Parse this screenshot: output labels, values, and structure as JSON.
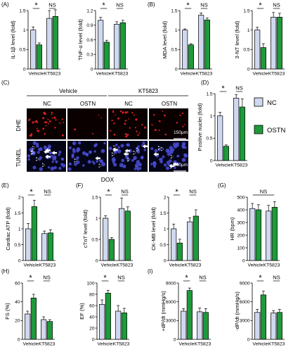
{
  "panel_letters": [
    "(A)",
    "(B)",
    "(C)",
    "(D)",
    "(E)",
    "(F)",
    "(G)",
    "(H)",
    "(I)"
  ],
  "legend": {
    "items": [
      {
        "label": "NC",
        "color": "#cfd8ee"
      },
      {
        "label": "OSTN",
        "color": "#1e9a3a"
      }
    ]
  },
  "micrograph": {
    "groups": [
      "Vehicle",
      "KT5823"
    ],
    "columns": [
      "NC",
      "OSTN",
      "NC",
      "OSTN"
    ],
    "rows": [
      "DHE",
      "TUNEL"
    ],
    "scale_bars": [
      "150μm",
      "100μm"
    ],
    "bottom_label": "DOX",
    "colors": {
      "dhe_bg": "#0a0000",
      "dhe_dot": "#e02020",
      "tunel_bg": "#050518",
      "tunel_cell": "#4a4fd8",
      "arrow": "#ffffff"
    }
  },
  "chart_data": [
    {
      "id": "il1b",
      "type": "bar",
      "ylabel": "IL-1β level (fold)",
      "ylim": [
        0,
        1.5
      ],
      "yticks": [
        0,
        0.5,
        1,
        1.5
      ],
      "categories": [
        "Vehicle",
        "KT5823"
      ],
      "series": [
        {
          "name": "NC",
          "values": [
            1.0,
            1.3
          ],
          "errors": [
            0.08,
            0.2
          ]
        },
        {
          "name": "OSTN",
          "values": [
            0.62,
            1.35
          ],
          "errors": [
            0.05,
            0.17
          ]
        }
      ],
      "significance": [
        "*",
        "NS"
      ]
    },
    {
      "id": "tnfa",
      "type": "bar",
      "ylabel": "TNF-α level (fold)",
      "ylim": [
        0,
        1.2
      ],
      "yticks": [
        0,
        0.3,
        0.6,
        0.9,
        1.2
      ],
      "categories": [
        "Vehicle",
        "KT5823"
      ],
      "series": [
        {
          "name": "NC",
          "values": [
            1.0,
            0.92
          ],
          "errors": [
            0.06,
            0.05
          ]
        },
        {
          "name": "OSTN",
          "values": [
            0.55,
            0.95
          ],
          "errors": [
            0.04,
            0.05
          ]
        }
      ],
      "significance": [
        "*",
        "NS"
      ]
    },
    {
      "id": "mda",
      "type": "bar",
      "ylabel": "MDA level (fold)",
      "ylim": [
        0,
        1.5
      ],
      "yticks": [
        0,
        0.5,
        1,
        1.5
      ],
      "categories": [
        "Vehicle",
        "KT5823"
      ],
      "series": [
        {
          "name": "NC",
          "values": [
            1.0,
            1.38
          ],
          "errors": [
            0.03,
            0.06
          ]
        },
        {
          "name": "OSTN",
          "values": [
            0.62,
            1.26
          ],
          "errors": [
            0.03,
            0.05
          ]
        }
      ],
      "significance": [
        "*",
        "NS"
      ]
    },
    {
      "id": "3nt",
      "type": "bar",
      "ylabel": "3-NT level (fold)",
      "ylim": [
        0,
        1.5
      ],
      "yticks": [
        0,
        0.5,
        1,
        1.5
      ],
      "categories": [
        "Vehicle",
        "KT5823"
      ],
      "series": [
        {
          "name": "NC",
          "values": [
            1.0,
            1.33
          ],
          "errors": [
            0.07,
            0.12
          ]
        },
        {
          "name": "OSTN",
          "values": [
            0.55,
            1.33
          ],
          "errors": [
            0.1,
            0.1
          ]
        }
      ],
      "significance": [
        "*",
        "NS"
      ]
    },
    {
      "id": "positive_nuclei",
      "type": "bar",
      "ylabel": "Positive nuclei (fold)",
      "ylim": [
        0,
        1.5
      ],
      "yticks": [
        0,
        0.5,
        1,
        1.5
      ],
      "categories": [
        "Vehicle",
        "KT5823"
      ],
      "series": [
        {
          "name": "NC",
          "values": [
            1.0,
            1.4
          ],
          "errors": [
            0.08,
            0.08
          ]
        },
        {
          "name": "OSTN",
          "values": [
            0.32,
            1.2
          ],
          "errors": [
            0.03,
            0.18
          ]
        }
      ],
      "significance": [
        "*",
        "NS"
      ]
    },
    {
      "id": "cardiac_atp",
      "type": "bar",
      "ylabel": "Cardiac ATP (fold)",
      "ylim": [
        0,
        2
      ],
      "yticks": [
        0,
        0.5,
        1,
        1.5,
        2
      ],
      "categories": [
        "Vehicle",
        "KT5823"
      ],
      "series": [
        {
          "name": "NC",
          "values": [
            1.0,
            0.85
          ],
          "errors": [
            0.17,
            0.08
          ]
        },
        {
          "name": "OSTN",
          "values": [
            1.7,
            0.87
          ],
          "errors": [
            0.2,
            0.1
          ]
        }
      ],
      "significance": [
        "*",
        "NS"
      ]
    },
    {
      "id": "ctnt",
      "type": "bar",
      "ylabel": "cTnT level (fold)",
      "ylim": [
        0,
        1.5
      ],
      "yticks": [
        0,
        0.5,
        1,
        1.5
      ],
      "categories": [
        "Vehicle",
        "KT5823"
      ],
      "series": [
        {
          "name": "NC",
          "values": [
            1.0,
            1.23
          ],
          "errors": [
            0.06,
            0.25
          ]
        },
        {
          "name": "OSTN",
          "values": [
            0.5,
            1.17
          ],
          "errors": [
            0.04,
            0.1
          ]
        }
      ],
      "significance": [
        "*",
        "NS"
      ]
    },
    {
      "id": "ckmb",
      "type": "bar",
      "ylabel": "CK-MB level (fold)",
      "ylim": [
        0,
        2
      ],
      "yticks": [
        0,
        0.5,
        1,
        1.5,
        2
      ],
      "categories": [
        "Vehicle",
        "KT5823"
      ],
      "series": [
        {
          "name": "NC",
          "values": [
            1.0,
            1.22
          ],
          "errors": [
            0.15,
            0.13
          ]
        },
        {
          "name": "OSTN",
          "values": [
            0.55,
            1.4
          ],
          "errors": [
            0.12,
            0.2
          ]
        }
      ],
      "significance": [
        "*",
        "NS"
      ]
    },
    {
      "id": "hr",
      "type": "bar",
      "ylabel": "HR (bpm)",
      "ylim": [
        0,
        500
      ],
      "yticks": [
        0,
        100,
        200,
        300,
        400,
        500
      ],
      "categories": [
        "Vehicle",
        "KT5823"
      ],
      "series": [
        {
          "name": "NC",
          "values": [
            410,
            390
          ],
          "errors": [
            40,
            45
          ]
        },
        {
          "name": "OSTN",
          "values": [
            400,
            420
          ],
          "errors": [
            40,
            45
          ]
        }
      ],
      "significance": [
        "NS"
      ]
    },
    {
      "id": "fs",
      "type": "bar",
      "ylabel": "FS (%)",
      "ylim": [
        0,
        60
      ],
      "yticks": [
        0,
        20,
        40,
        60
      ],
      "categories": [
        "Vehicle",
        "KT5823"
      ],
      "series": [
        {
          "name": "NC",
          "values": [
            27,
            21
          ],
          "errors": [
            3,
            3
          ]
        },
        {
          "name": "OSTN",
          "values": [
            44,
            19
          ],
          "errors": [
            4,
            2
          ]
        }
      ],
      "significance": [
        "*",
        "NS"
      ]
    },
    {
      "id": "ef",
      "type": "bar",
      "ylabel": "EF (%)",
      "ylim": [
        0,
        100
      ],
      "yticks": [
        0,
        20,
        40,
        60,
        80,
        100
      ],
      "categories": [
        "Vehicle",
        "KT5823"
      ],
      "series": [
        {
          "name": "NC",
          "values": [
            62,
            50
          ],
          "errors": [
            8,
            10
          ]
        },
        {
          "name": "OSTN",
          "values": [
            82,
            47
          ],
          "errors": [
            5,
            8
          ]
        }
      ],
      "significance": [
        "*",
        "NS"
      ]
    },
    {
      "id": "plus_dpdt",
      "type": "bar",
      "ylabel": "+dP/dt (mmHg/s)",
      "ylim": [
        0,
        9000
      ],
      "yticks": [
        0,
        3000,
        6000,
        9000
      ],
      "categories": [
        "Vehicle",
        "KT5823"
      ],
      "series": [
        {
          "name": "NC",
          "values": [
            4500,
            4400
          ],
          "errors": [
            400,
            600
          ]
        },
        {
          "name": "OSTN",
          "values": [
            7800,
            4300
          ],
          "errors": [
            400,
            600
          ]
        }
      ],
      "significance": [
        "*",
        "NS"
      ]
    },
    {
      "id": "minus_dpdt",
      "type": "bar",
      "ylabel": "-dP/dt (mmHg/s)",
      "ylim": [
        0,
        9000
      ],
      "yticks": [
        0,
        3000,
        6000,
        9000
      ],
      "categories": [
        "Vehicle",
        "KT5823"
      ],
      "series": [
        {
          "name": "NC",
          "values": [
            4300,
            4200
          ],
          "errors": [
            500,
            400
          ]
        },
        {
          "name": "OSTN",
          "values": [
            7100,
            4300
          ],
          "errors": [
            600,
            500
          ]
        }
      ],
      "significance": [
        "*",
        "NS"
      ]
    }
  ]
}
